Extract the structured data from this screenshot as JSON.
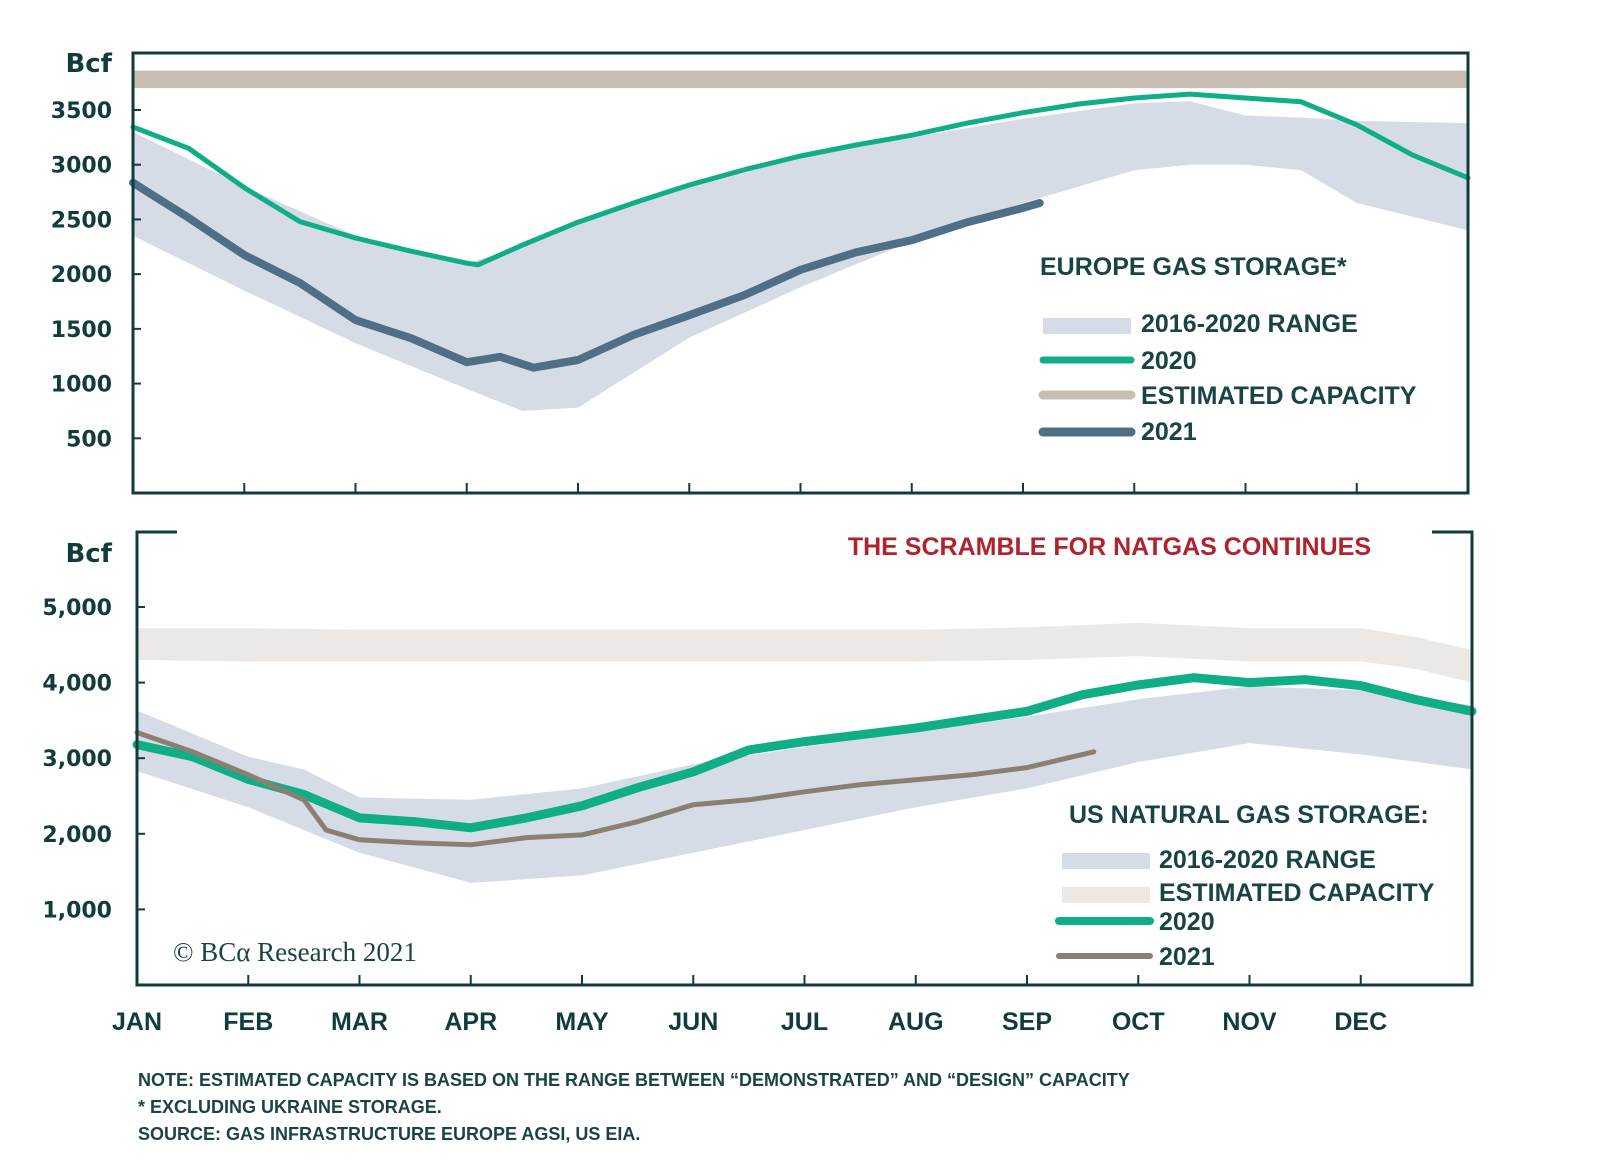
{
  "chart_data": [
    {
      "type": "line",
      "title": "EUROPE GAS STORAGE*",
      "ylabel": "Bcf",
      "xlabel": "",
      "ylim": [
        0,
        3500
      ],
      "yticks": [
        500,
        1000,
        1500,
        2000,
        2500,
        3000,
        3500
      ],
      "ytick_labels": [
        "500",
        "1000",
        "1500",
        "2000",
        "2500",
        "3000",
        "3500"
      ],
      "x_unit": "months since Jan 1",
      "xlim": [
        0,
        12
      ],
      "grid": false,
      "legend_position": "middle-right",
      "legend": [
        "2016-2020 RANGE",
        "2020",
        "ESTIMATED CAPACITY",
        "2021"
      ],
      "bands": [
        {
          "name": "ESTIMATED CAPACITY",
          "color": "#c8bdb2",
          "x": [
            0,
            12
          ],
          "low": [
            3700,
            3700
          ],
          "high": [
            3860,
            3860
          ]
        },
        {
          "name": "2016-2020 RANGE",
          "color": "#d6dce6",
          "x": [
            0,
            1,
            2,
            3,
            3.5,
            4,
            4.5,
            5,
            6,
            7,
            8,
            9,
            9.5,
            10,
            10.5,
            11,
            12
          ],
          "high": [
            3300,
            2800,
            2350,
            2100,
            2250,
            2470,
            2640,
            2800,
            3060,
            3250,
            3420,
            3560,
            3580,
            3450,
            3430,
            3400,
            3380
          ],
          "low": [
            2350,
            1850,
            1370,
            950,
            750,
            780,
            1100,
            1420,
            1880,
            2300,
            2650,
            2950,
            3000,
            3000,
            2950,
            2650,
            2400
          ]
        }
      ],
      "series": [
        {
          "name": "2020",
          "color": "#0fae86",
          "x": [
            0,
            0.5,
            1,
            1.5,
            2,
            2.5,
            3,
            3.1,
            3.5,
            4,
            4.5,
            5,
            5.5,
            6,
            6.5,
            7,
            7.5,
            8,
            8.5,
            9,
            9.5,
            10,
            10.5,
            11,
            11.5,
            12
          ],
          "values": [
            3345,
            3150,
            2790,
            2480,
            2330,
            2210,
            2100,
            2085,
            2265,
            2475,
            2650,
            2815,
            2955,
            3080,
            3180,
            3270,
            3380,
            3475,
            3555,
            3610,
            3645,
            3610,
            3575,
            3365,
            3090,
            2880
          ]
        },
        {
          "name": "2021",
          "color": "#4f6f86",
          "x": [
            0,
            0.5,
            1,
            1.5,
            2,
            2.5,
            3,
            3.3,
            3.6,
            4,
            4.5,
            5,
            5.5,
            6,
            6.5,
            7,
            7.5,
            8,
            8.15
          ],
          "values": [
            2835,
            2515,
            2175,
            1920,
            1580,
            1415,
            1195,
            1245,
            1145,
            1215,
            1445,
            1625,
            1810,
            2040,
            2200,
            2310,
            2475,
            2605,
            2650
          ]
        }
      ]
    },
    {
      "type": "line",
      "title": "US NATURAL GAS STORAGE:",
      "headline": "THE SCRAMBLE FOR NATGAS CONTINUES",
      "ylabel": "Bcf",
      "xlabel": "",
      "ylim": [
        0,
        5000
      ],
      "yticks": [
        1000,
        2000,
        3000,
        4000,
        5000
      ],
      "ytick_labels": [
        "1,000",
        "2,000",
        "3,000",
        "4,000",
        "5,000"
      ],
      "x_unit": "months since Jan 1",
      "xlim": [
        0,
        12
      ],
      "xtick_labels": [
        "JAN",
        "FEB",
        "MAR",
        "APR",
        "MAY",
        "JUN",
        "JUL",
        "AUG",
        "SEP",
        "OCT",
        "NOV",
        "DEC"
      ],
      "grid": false,
      "legend_position": "bottom-right",
      "legend": [
        "2016-2020 RANGE",
        "ESTIMATED CAPACITY",
        "2020",
        "2021"
      ],
      "bands": [
        {
          "name": "ESTIMATED CAPACITY",
          "color": "#ebe8e5",
          "x": [
            0,
            1,
            2,
            3,
            4,
            5,
            6,
            7,
            8,
            9,
            10,
            11,
            11.5,
            12
          ],
          "high": [
            4720,
            4720,
            4700,
            4700,
            4700,
            4700,
            4700,
            4700,
            4730,
            4790,
            4720,
            4720,
            4600,
            4430
          ],
          "low": [
            4300,
            4280,
            4280,
            4280,
            4280,
            4280,
            4280,
            4280,
            4300,
            4350,
            4280,
            4280,
            4180,
            4000
          ]
        },
        {
          "name": "2016-2020 RANGE",
          "color": "#d6dce6",
          "x": [
            0,
            1,
            1.5,
            2,
            3,
            4,
            5,
            6,
            7,
            8,
            9,
            10,
            11,
            12
          ],
          "high": [
            3630,
            3020,
            2850,
            2480,
            2450,
            2600,
            2920,
            3150,
            3350,
            3550,
            3780,
            3950,
            3900,
            3700
          ],
          "low": [
            2830,
            2350,
            2050,
            1750,
            1350,
            1450,
            1750,
            2050,
            2350,
            2600,
            2950,
            3200,
            3050,
            2850
          ]
        }
      ],
      "series": [
        {
          "name": "2020",
          "color": "#0fae86",
          "x": [
            0,
            0.5,
            1,
            1.5,
            2,
            2.5,
            3,
            3.5,
            4,
            4.5,
            5,
            5.5,
            6,
            6.5,
            7,
            7.5,
            8,
            8.5,
            9,
            9.5,
            10,
            10.5,
            11,
            11.5,
            12
          ],
          "values": [
            3180,
            3020,
            2720,
            2520,
            2210,
            2160,
            2080,
            2210,
            2370,
            2610,
            2820,
            3110,
            3220,
            3310,
            3400,
            3510,
            3620,
            3840,
            3970,
            4065,
            4000,
            4040,
            3960,
            3775,
            3620
          ]
        },
        {
          "name": "2021",
          "color": "#8b7f72",
          "x": [
            0,
            0.5,
            1,
            1.5,
            1.7,
            2,
            2.5,
            3,
            3.5,
            4,
            4.5,
            5,
            5.5,
            6,
            6.5,
            7,
            7.5,
            8,
            8.6
          ],
          "values": [
            3340,
            3085,
            2780,
            2450,
            2050,
            1920,
            1880,
            1855,
            1950,
            1985,
            2160,
            2385,
            2450,
            2555,
            2650,
            2715,
            2780,
            2875,
            3085
          ]
        }
      ]
    }
  ],
  "copyright": "© BCα Research 2021",
  "footnotes": [
    "NOTE: ESTIMATED CAPACITY IS BASED ON THE RANGE BETWEEN “DEMONSTRATED” AND “DESIGN” CAPACITY",
    "* EXCLUDING UKRAINE STORAGE.",
    "SOURCE: GAS INFRASTRUCTURE EUROPE AGSI, US EIA."
  ]
}
